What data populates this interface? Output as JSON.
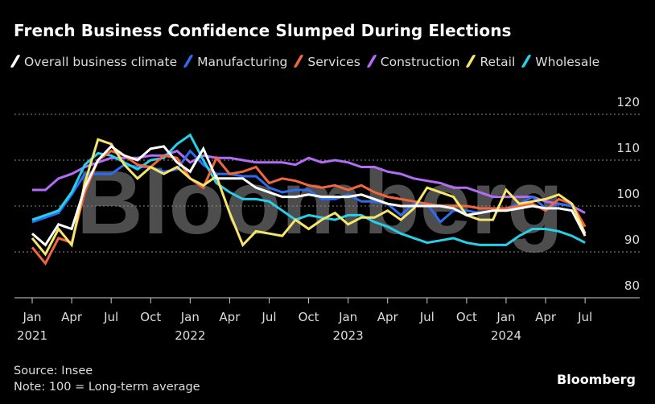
{
  "title": "French Business Confidence Slumped During Elections",
  "source": "Source: Insee",
  "note": "Note: 100 = Long-term average",
  "brand": "Bloomberg",
  "watermark": "Bloomberg",
  "chart_data": {
    "type": "line",
    "title": "French Business Confidence Slumped During Elections",
    "xlabel": "",
    "ylabel": "",
    "ylim": [
      80,
      120
    ],
    "yticks": [
      80,
      90,
      100,
      110,
      120
    ],
    "grid": true,
    "legend_position": "top",
    "x_start": "2021-01",
    "x": [
      "2021-01",
      "2021-02",
      "2021-03",
      "2021-04",
      "2021-05",
      "2021-06",
      "2021-07",
      "2021-08",
      "2021-09",
      "2021-10",
      "2021-11",
      "2021-12",
      "2022-01",
      "2022-02",
      "2022-03",
      "2022-04",
      "2022-05",
      "2022-06",
      "2022-07",
      "2022-08",
      "2022-09",
      "2022-10",
      "2022-11",
      "2022-12",
      "2023-01",
      "2023-02",
      "2023-03",
      "2023-04",
      "2023-05",
      "2023-06",
      "2023-07",
      "2023-08",
      "2023-09",
      "2023-10",
      "2023-11",
      "2023-12",
      "2024-01",
      "2024-02",
      "2024-03",
      "2024-04",
      "2024-05",
      "2024-06",
      "2024-07"
    ],
    "xticks": [
      {
        "month": "Jan",
        "year": "2021",
        "index": 0
      },
      {
        "month": "Apr",
        "year": "",
        "index": 3
      },
      {
        "month": "Jul",
        "year": "",
        "index": 6
      },
      {
        "month": "Oct",
        "year": "",
        "index": 9
      },
      {
        "month": "Jan",
        "year": "2022",
        "index": 12
      },
      {
        "month": "Apr",
        "year": "",
        "index": 15
      },
      {
        "month": "Jul",
        "year": "",
        "index": 18
      },
      {
        "month": "Oct",
        "year": "",
        "index": 21
      },
      {
        "month": "Jan",
        "year": "2023",
        "index": 24
      },
      {
        "month": "Apr",
        "year": "",
        "index": 27
      },
      {
        "month": "Jul",
        "year": "",
        "index": 30
      },
      {
        "month": "Oct",
        "year": "",
        "index": 33
      },
      {
        "month": "Jan",
        "year": "2024",
        "index": 36
      },
      {
        "month": "Apr",
        "year": "",
        "index": 39
      },
      {
        "month": "Jul",
        "year": "",
        "index": 42
      }
    ],
    "series": [
      {
        "name": "Construction",
        "color": "#b36cf5",
        "values": [
          103.5,
          103.5,
          106,
          107,
          108.5,
          109.5,
          110.5,
          110.5,
          110.5,
          111,
          111,
          112,
          109.5,
          111,
          110.5,
          110.5,
          110,
          109.5,
          109.5,
          109.5,
          109,
          110.5,
          109.5,
          110,
          109.5,
          108.5,
          108.5,
          107.5,
          107,
          106,
          105.5,
          105,
          104,
          104,
          103,
          102,
          102,
          102,
          102,
          101,
          100.5,
          100,
          98.5
        ]
      },
      {
        "name": "Manufacturing",
        "color": "#2d6cf0",
        "values": [
          96.5,
          97.5,
          98.5,
          102.5,
          107,
          107,
          107,
          109,
          108.5,
          108.5,
          107.5,
          108,
          112,
          109,
          107,
          107,
          106.5,
          106.5,
          104,
          103,
          103.5,
          103.5,
          101.5,
          101.5,
          102.5,
          101,
          101,
          100.5,
          98,
          100.5,
          100.5,
          96.5,
          99,
          99,
          98.5,
          99,
          99.5,
          100.5,
          102,
          99.5,
          100.5,
          100,
          95.5
        ]
      },
      {
        "name": "Wholesale",
        "color": "#26d0e8",
        "values": [
          97,
          98,
          99,
          103,
          109,
          111.5,
          111,
          109.5,
          108,
          110,
          110.5,
          113.5,
          115.5,
          110,
          105,
          103,
          101.5,
          101.5,
          101,
          99,
          97,
          98,
          97.5,
          97,
          98,
          98,
          96.5,
          95.5,
          94,
          93,
          92,
          92.5,
          93,
          92,
          91.5,
          91.5,
          91.5,
          93.5,
          95,
          95,
          94.5,
          93.5,
          92
        ]
      },
      {
        "name": "Services",
        "color": "#f2663d",
        "values": [
          91,
          87.5,
          93,
          92,
          103,
          110,
          112,
          111,
          109,
          108.5,
          111,
          110.5,
          106,
          104,
          110.5,
          107,
          107.5,
          108.5,
          105,
          106,
          105.5,
          104.5,
          104,
          104.5,
          103.5,
          104.5,
          103,
          102,
          101.5,
          101,
          100.5,
          100,
          100,
          100,
          99.5,
          99.5,
          99.5,
          100,
          100.5,
          99,
          101.5,
          100.5,
          95.5
        ]
      },
      {
        "name": "Retail",
        "color": "#f5e56b",
        "values": [
          93,
          89.5,
          95,
          91.5,
          105,
          114.5,
          113.5,
          109,
          106,
          108.5,
          107,
          108.5,
          106,
          104.5,
          106.5,
          98.5,
          91.5,
          94.5,
          94,
          93.5,
          97,
          95,
          97,
          98.5,
          96,
          97.5,
          97.5,
          99,
          97,
          99.5,
          104,
          103,
          102,
          98,
          97,
          97,
          103.5,
          100.5,
          101,
          101.5,
          102.5,
          100.5,
          94
        ]
      },
      {
        "name": "Overall business climate",
        "color": "#ffffff",
        "values": [
          94,
          91.5,
          96,
          95,
          104,
          110,
          113,
          111,
          110,
          112.5,
          113,
          109.5,
          107.5,
          112.5,
          106,
          106,
          106,
          104,
          103,
          102,
          102,
          102.5,
          102,
          102,
          102,
          102.5,
          101.5,
          100.5,
          100,
          100,
          100,
          100,
          99.5,
          98,
          98.5,
          99,
          99,
          99.5,
          100,
          99.5,
          99.5,
          99,
          93.5
        ]
      }
    ]
  },
  "legend_order": [
    "Overall business climate",
    "Manufacturing",
    "Services",
    "Construction",
    "Retail",
    "Wholesale"
  ]
}
